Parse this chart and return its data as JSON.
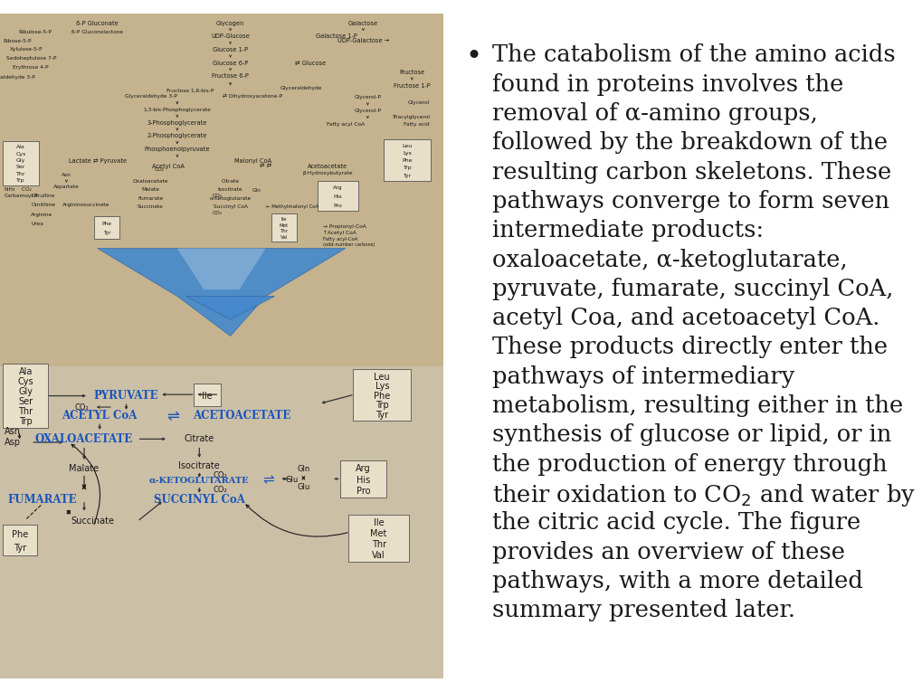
{
  "background_color": "#ffffff",
  "left_panel_bg": "#c9b99a",
  "top_panel_bg": "#c4b38e",
  "bot_panel_bg": "#cbbfa6",
  "figure_width": 10.2,
  "figure_height": 7.65,
  "bullet_text_lines": [
    "The catabolism of the amino acids",
    "found in proteins involves the",
    "removal of α-amino groups,",
    "followed by the breakdown of the",
    "resulting carbon skeletons. These",
    "pathways converge to form seven",
    "intermediate products:",
    "oxaloacetate, α-ketoglutarate,",
    "pyruvate, fumarate, succinyl CoA,",
    "acetyl Coa, and acetoacetyl CoA.",
    "These products directly enter the",
    "pathways of intermediary",
    "metabolism, resulting either in the",
    "synthesis of glucose or lipid, or in",
    "the production of energy through",
    "their oxidation to CO_2 and water by",
    "the citric acid cycle. The figure",
    "provides an overview of these",
    "pathways, with a more detailed",
    "summary presented later."
  ],
  "text_fontsize": 18.5,
  "text_font": "DejaVu Serif",
  "blue_color": "#1a55bb",
  "dark_color": "#1a1a1a",
  "box_fill": "#e8dfc8",
  "box_edge": "#555555"
}
